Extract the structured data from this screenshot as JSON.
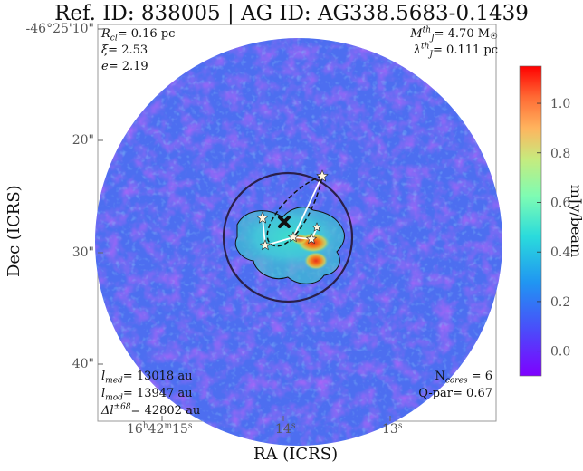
{
  "chart_data": {
    "type": "heatmap",
    "title": "Ref. ID: 838005 | AG ID: AG338.5683-0.1439",
    "xlabel": "RA (ICRS)",
    "ylabel": "Dec (ICRS)",
    "x_ticks": [
      {
        "label": "16h42m15s",
        "main": "16",
        "sup1": "h",
        "mid": "42",
        "sup2": "m",
        "rest": "15",
        "sup3": "s"
      },
      {
        "label": "14s",
        "main": "14",
        "sup": "s"
      },
      {
        "label": "13s",
        "main": "13",
        "sup": "s"
      }
    ],
    "y_ticks": [
      "-46°25'10\"",
      "20\"",
      "30\"",
      "40\""
    ],
    "colorbar": {
      "label": "mJy/beam",
      "range": [
        -0.1,
        1.15
      ],
      "ticks": [
        "0.0",
        "0.2",
        "0.4",
        "0.6",
        "0.8",
        "1.0"
      ],
      "tick_values": [
        0.0,
        0.2,
        0.4,
        0.6,
        0.8,
        1.0
      ],
      "colormap": "rainbow"
    },
    "annotations": {
      "top_left": {
        "r_cl": "0.16 pc",
        "xi": "2.53",
        "e": "2.19"
      },
      "top_right": {
        "m_jth": "4.70 M",
        "lambda_jth": "0.111 pc"
      },
      "bottom_left": {
        "l_med": "13018 au",
        "l_mod": "13947 au",
        "delta_l": "42802 au"
      },
      "bottom_right": {
        "n_cores": "6",
        "q_par": "0.67"
      }
    },
    "cores_count": 6,
    "colors": {
      "low": "#7a22f0",
      "background_field": "#4d6ef0",
      "high": "#e52a1a",
      "circle": "#2a1f4a"
    }
  },
  "text": {
    "rcl_sym": "R",
    "rcl_sub": "cl",
    "xi_sym": "ξ",
    "e_sym": "e",
    "mj_sym": "M",
    "mj_sup": "th",
    "mj_sub": "J",
    "lj_sym": "λ",
    "lj_sup": "th",
    "lj_sub": "J",
    "lmed_sym": "l",
    "lmed_sub": "med",
    "lmod_sym": "l",
    "lmod_sub": "mod",
    "dl_sym": "Δl",
    "dl_sup": "±68",
    "ncores_sym": "N",
    "ncores_sub": "cores",
    "qpar_label": "Q-par"
  }
}
